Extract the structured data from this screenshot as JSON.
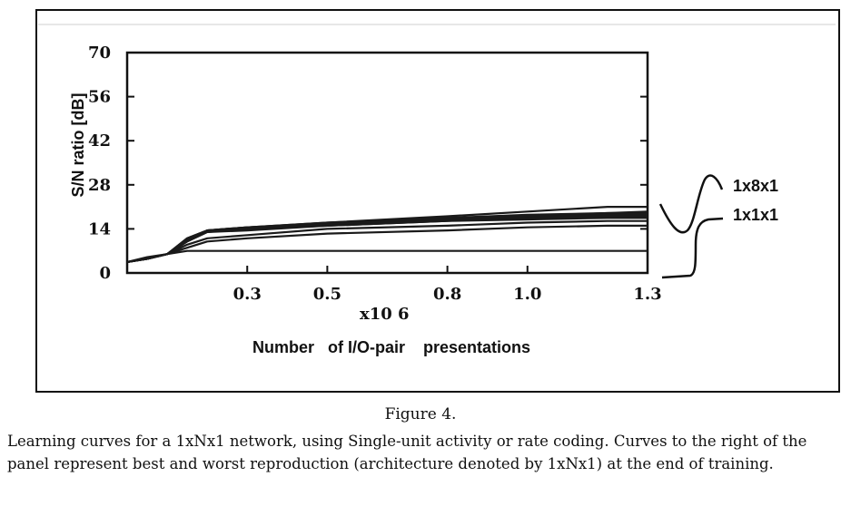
{
  "figure": {
    "caption_title": "Figure 4.",
    "caption_body": "Learning curves for a 1xNx1 network, using Single-unit activity or rate coding. Curves to the right of the panel represent best and worst reproduction (architecture denoted by 1xNx1) at the end of training."
  },
  "chart_data": {
    "type": "line",
    "xlabel": "Number   of I/O-pair    presentations",
    "x_multiplier": "x10 6",
    "ylabel": "S/N  ratio   [dB]",
    "x_ticks": [
      0.3,
      0.5,
      0.8,
      1.0,
      1.3
    ],
    "x_tick_labels": [
      "0.3",
      "0.5",
      "0.8",
      "1.0",
      "1.3"
    ],
    "y_ticks": [
      0,
      14,
      28,
      42,
      56,
      70
    ],
    "y_tick_labels": [
      "0",
      "14",
      "28",
      "42",
      "56",
      "70"
    ],
    "xlim": [
      0.0,
      1.3
    ],
    "ylim": [
      0,
      70
    ],
    "grid": false,
    "legend_placement": "right of plot",
    "series": [
      {
        "x": [
          0.0,
          0.05,
          0.1,
          0.15,
          0.2,
          0.3,
          0.5,
          0.8,
          1.0,
          1.2,
          1.3
        ],
        "y": [
          3.5,
          5,
          6,
          7,
          7,
          7,
          7,
          7,
          7,
          7,
          7
        ]
      },
      {
        "x": [
          0.0,
          0.05,
          0.1,
          0.15,
          0.2,
          0.3,
          0.5,
          0.8,
          1.0,
          1.2,
          1.3
        ],
        "y": [
          3.5,
          4.5,
          6,
          8,
          10,
          11,
          12.5,
          13.5,
          14.5,
          15,
          15
        ]
      },
      {
        "x": [
          0.0,
          0.05,
          0.1,
          0.15,
          0.2,
          0.3,
          0.5,
          0.8,
          1.0,
          1.2,
          1.3
        ],
        "y": [
          3.5,
          4.5,
          6,
          9,
          11,
          12,
          14,
          15,
          16,
          16.5,
          16.5
        ]
      },
      {
        "x": [
          0.0,
          0.05,
          0.1,
          0.15,
          0.2,
          0.3,
          0.5,
          0.8,
          1.0,
          1.2,
          1.3
        ],
        "y": [
          3.5,
          4.5,
          6,
          10,
          13,
          13.5,
          15,
          16.5,
          17,
          17.5,
          17.5
        ]
      },
      {
        "x": [
          0.0,
          0.05,
          0.1,
          0.15,
          0.2,
          0.3,
          0.5,
          0.8,
          1.0,
          1.2,
          1.3
        ],
        "y": [
          3.5,
          4.5,
          6,
          10,
          13,
          14,
          15.5,
          17,
          17.5,
          18,
          18
        ]
      },
      {
        "x": [
          0.0,
          0.05,
          0.1,
          0.15,
          0.2,
          0.3,
          0.5,
          0.8,
          1.0,
          1.2,
          1.3
        ],
        "y": [
          3.5,
          4.5,
          6,
          10.5,
          13.5,
          14,
          15,
          16.5,
          18,
          18.5,
          18.5
        ]
      },
      {
        "x": [
          0.0,
          0.05,
          0.1,
          0.15,
          0.2,
          0.3,
          0.5,
          0.8,
          1.0,
          1.2,
          1.3
        ],
        "y": [
          3.5,
          4.5,
          6,
          10.5,
          13.5,
          14.5,
          16,
          17.5,
          18.5,
          19,
          19
        ]
      },
      {
        "x": [
          0.0,
          0.05,
          0.1,
          0.15,
          0.2,
          0.3,
          0.5,
          0.8,
          1.0,
          1.2,
          1.3
        ],
        "y": [
          3.5,
          4.5,
          6,
          11,
          13.5,
          14.5,
          15.5,
          17,
          18,
          19,
          19.5
        ]
      },
      {
        "x": [
          0.0,
          0.05,
          0.1,
          0.15,
          0.2,
          0.3,
          0.5,
          0.8,
          1.0,
          1.2,
          1.3
        ],
        "y": [
          3.5,
          4.5,
          6,
          11,
          13.5,
          14.5,
          16,
          18,
          19.5,
          21,
          21
        ]
      }
    ],
    "legend": [
      {
        "label": "1x8x1",
        "glyph": "sine-wave-curve"
      },
      {
        "label": "1x1x1",
        "glyph": "step-curve"
      }
    ]
  }
}
